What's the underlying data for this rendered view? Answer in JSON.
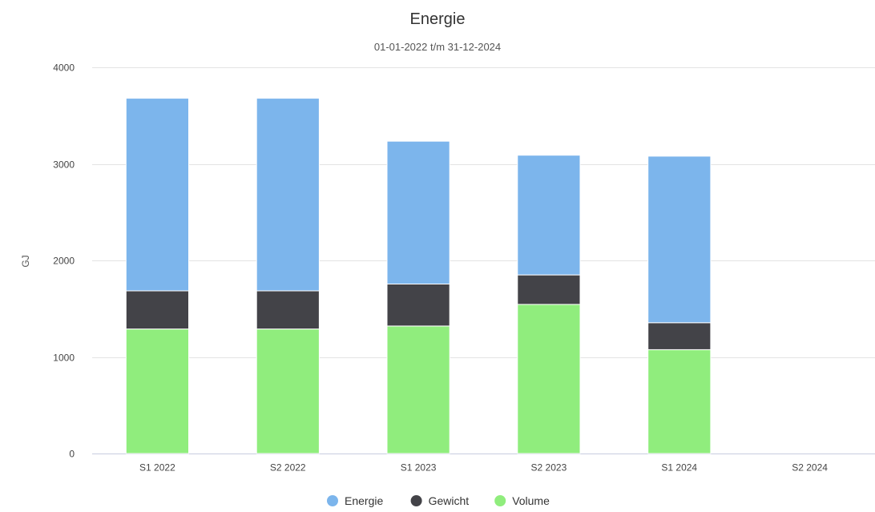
{
  "chart_data": {
    "type": "bar",
    "stacked": true,
    "title": "Energie",
    "subtitle": "01-01-2022 t/m 31-12-2024",
    "ylabel": "GJ",
    "xlabel": "",
    "categories": [
      "S1 2022",
      "S2 2022",
      "S1 2023",
      "S2 2023",
      "S1 2024",
      "S2 2024"
    ],
    "ylim": [
      0,
      4000
    ],
    "yticks": [
      0,
      1000,
      2000,
      3000,
      4000
    ],
    "grid": true,
    "legend_position": "bottom",
    "series": [
      {
        "name": "Volume",
        "color": "#90ed7d",
        "values": [
          1290,
          1290,
          1320,
          1545,
          1075,
          0
        ]
      },
      {
        "name": "Gewicht",
        "color": "#434348",
        "values": [
          395,
          395,
          435,
          305,
          280,
          0
        ]
      },
      {
        "name": "Energie",
        "color": "#7cb5ec",
        "values": [
          1995,
          1995,
          1480,
          1240,
          1725,
          0
        ]
      }
    ],
    "legend_order": [
      "Energie",
      "Gewicht",
      "Volume"
    ]
  }
}
